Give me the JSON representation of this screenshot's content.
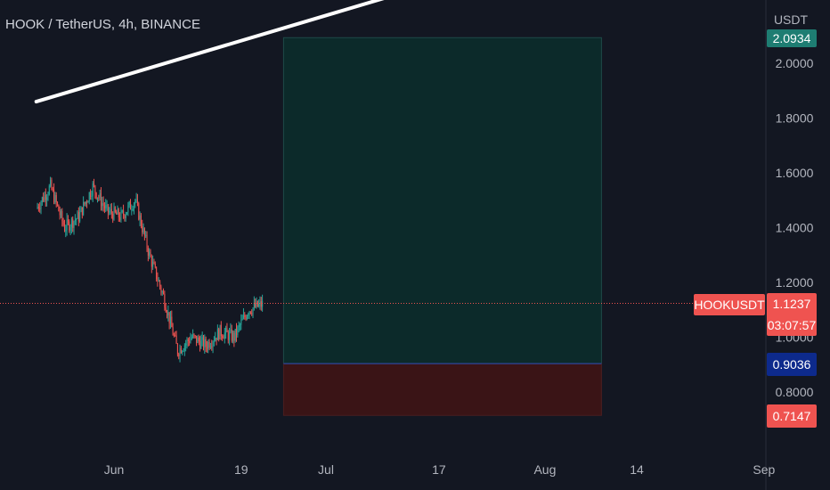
{
  "header": {
    "symbol_title": "HOOK / TetherUS, 4h, BINANCE"
  },
  "price_axis": {
    "currency": "USDT"
  },
  "price_tags": {
    "top_value": "2.0934",
    "symbol_label": "HOOKUSDT",
    "last_price": "1.1237",
    "countdown": "03:07:57",
    "entry_price": "0.9036",
    "stop_price": "0.7147"
  },
  "colors": {
    "background": "#131722",
    "bull": "#26a69a",
    "bear": "#ef5350",
    "target_zone": "#0c2a2a",
    "stop_zone": "#3a1416",
    "entry_tag": "#0d2a8c",
    "trendline": "#ffffff"
  },
  "chart_data": {
    "type": "candlestick",
    "title": "HOOK / TetherUS, 4h, BINANCE",
    "y_unit": "USDT",
    "ylim": [
      0.6,
      2.2
    ],
    "y_ticks": [
      2.0,
      1.8,
      1.6,
      1.4,
      1.2,
      1.0,
      0.8
    ],
    "y_tick_labels": [
      "2.0000",
      "1.8000",
      "1.6000",
      "1.4000",
      "1.2000",
      "1.0000",
      "0.8000"
    ],
    "x_ticks": [
      "Jun",
      "19",
      "Jul",
      "17",
      "Aug",
      "14",
      "Sep"
    ],
    "x_tick_dates": [
      "2023-06-01",
      "2023-06-19",
      "2023-07-01",
      "2023-07-17",
      "2023-08-01",
      "2023-08-14",
      "2023-09-01"
    ],
    "last_price": 1.1237,
    "price_series_approx": {
      "dates": [
        "2023-05-21",
        "2023-05-23",
        "2023-05-25",
        "2023-05-27",
        "2023-05-29",
        "2023-05-31",
        "2023-06-02",
        "2023-06-04",
        "2023-06-06",
        "2023-06-08",
        "2023-06-10",
        "2023-06-12",
        "2023-06-14",
        "2023-06-16",
        "2023-06-18",
        "2023-06-20",
        "2023-06-22"
      ],
      "close": [
        1.47,
        1.55,
        1.4,
        1.44,
        1.55,
        1.46,
        1.44,
        1.5,
        1.3,
        1.15,
        0.95,
        1.0,
        0.97,
        1.02,
        1.0,
        1.1,
        1.12
      ]
    },
    "position_tool": {
      "type": "long",
      "start": "2023-06-25",
      "end": "2023-08-09",
      "entry": 0.9036,
      "target": 2.0934,
      "stop": 0.7147
    },
    "trendline": {
      "points": [
        {
          "date": "2023-05-21",
          "price": 1.86
        },
        {
          "date": "2023-07-20",
          "price": 2.32
        }
      ]
    },
    "grid": false
  }
}
